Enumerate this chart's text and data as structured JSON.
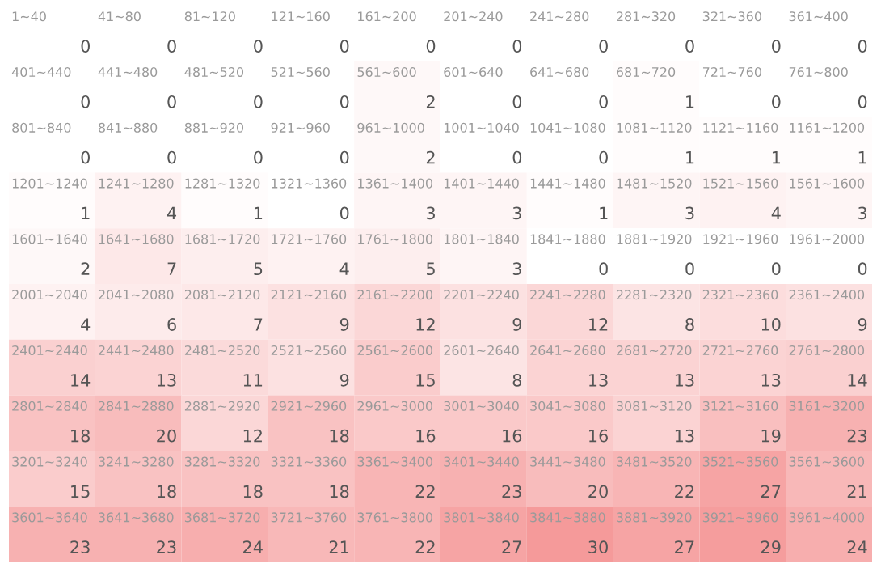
{
  "chart_data": {
    "type": "heatmap",
    "categories": [
      null,
      null,
      null,
      null,
      null,
      null,
      null,
      null,
      null,
      null
    ],
    "y_categories": [
      null,
      null,
      null,
      null,
      null,
      null,
      null,
      null,
      null,
      null
    ],
    "cells": [
      [
        0,
        0,
        0,
        0,
        0,
        0,
        0,
        0,
        0,
        0
      ],
      [
        0,
        0,
        0,
        0,
        2,
        0,
        0,
        1,
        0,
        0
      ],
      [
        0,
        0,
        0,
        0,
        2,
        0,
        0,
        1,
        1,
        1
      ],
      [
        1,
        4,
        1,
        0,
        3,
        3,
        1,
        3,
        4,
        3
      ],
      [
        2,
        7,
        5,
        4,
        5,
        3,
        0,
        0,
        0,
        0
      ],
      [
        4,
        6,
        7,
        9,
        12,
        9,
        12,
        8,
        10,
        9
      ],
      [
        14,
        13,
        11,
        9,
        15,
        8,
        13,
        13,
        13,
        14
      ],
      [
        18,
        20,
        12,
        18,
        16,
        16,
        16,
        13,
        19,
        23
      ],
      [
        15,
        18,
        18,
        18,
        22,
        23,
        20,
        22,
        27,
        21
      ],
      [
        23,
        23,
        24,
        21,
        22,
        27,
        30,
        27,
        29,
        24
      ]
    ],
    "annotations": [
      [
        "1~40",
        "41~80",
        "81~120",
        "121~160",
        "161~200",
        "201~240",
        "241~280",
        "281~320",
        "321~360",
        "361~400"
      ],
      [
        "401~440",
        "441~480",
        "481~520",
        "521~560",
        "561~600",
        "601~640",
        "641~680",
        "681~720",
        "721~760",
        "761~800"
      ],
      [
        "801~840",
        "841~880",
        "881~920",
        "921~960",
        "961~1000",
        "1001~1040",
        "1041~1080",
        "1081~1120",
        "1121~1160",
        "1161~1200"
      ],
      [
        "1201~1240",
        "1241~1280",
        "1281~1320",
        "1321~1360",
        "1361~1400",
        "1401~1440",
        "1441~1480",
        "1481~1520",
        "1521~1560",
        "1561~1600"
      ],
      [
        "1601~1640",
        "1641~1680",
        "1681~1720",
        "1721~1760",
        "1761~1800",
        "1801~1840",
        "1841~1880",
        "1881~1920",
        "1921~1960",
        "1961~2000"
      ],
      [
        "2001~2040",
        "2041~2080",
        "2081~2120",
        "2121~2160",
        "2161~2200",
        "2201~2240",
        "2241~2280",
        "2281~2320",
        "2321~2360",
        "2361~2400"
      ],
      [
        "2401~2440",
        "2441~2480",
        "2481~2520",
        "2521~2560",
        "2561~2600",
        "2601~2640",
        "2641~2680",
        "2681~2720",
        "2721~2760",
        "2761~2800"
      ],
      [
        "2801~2840",
        "2841~2880",
        "2881~2920",
        "2921~2960",
        "2961~3000",
        "3001~3040",
        "3041~3080",
        "3081~3120",
        "3121~3160",
        "3161~3200"
      ],
      [
        "3201~3240",
        "3241~3280",
        "3281~3320",
        "3321~3360",
        "3361~3400",
        "3401~3440",
        "3441~3480",
        "3481~3520",
        "3521~3560",
        "3561~3600"
      ],
      [
        "3601~3640",
        "3641~3680",
        "3681~3720",
        "3721~3760",
        "3761~3800",
        "3801~3840",
        "3841~3880",
        "3881~3920",
        "3921~3960",
        "3961~4000"
      ]
    ],
    "data_labels": true,
    "colors": [
      "#ffffff",
      "#f59a9a"
    ]
  }
}
